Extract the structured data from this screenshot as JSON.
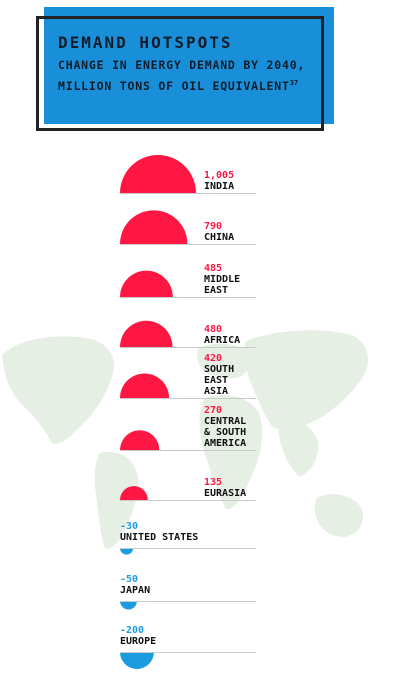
{
  "title": "DEMAND HOTSPOTS",
  "subtitle": "CHANGE IN ENERGY DEMAND BY 2040, MILLION TONS OF OIL EQUIVALENT",
  "footnote": "37",
  "colors": {
    "positive": "#ff1744",
    "negative": "#1a9be0",
    "title_box": "#1a8fd9",
    "map": "#e6efe4"
  },
  "chart_data": {
    "type": "bar",
    "encoding": "semicircle-area",
    "title": "DEMAND HOTSPOTS",
    "subtitle": "CHANGE IN ENERGY DEMAND BY 2040, MILLION TONS OF OIL EQUIVALENT",
    "unit": "million tons of oil equivalent",
    "categories": [
      "INDIA",
      "CHINA",
      "MIDDLE EAST",
      "AFRICA",
      "SOUTH EAST ASIA",
      "CENTRAL & SOUTH AMERICA",
      "EURASIA",
      "UNITED STATES",
      "JAPAN",
      "EUROPE"
    ],
    "values": [
      1005,
      790,
      485,
      480,
      420,
      270,
      135,
      -30,
      -50,
      -200
    ],
    "value_labels": [
      "1,005",
      "790",
      "485",
      "480",
      "420",
      "270",
      "135",
      "-30",
      "-50",
      "-200"
    ],
    "name_lines": [
      [
        "INDIA"
      ],
      [
        "CHINA"
      ],
      [
        "MIDDLE",
        "EAST"
      ],
      [
        "AFRICA"
      ],
      [
        "SOUTH",
        "EAST",
        "ASIA"
      ],
      [
        "CENTRAL",
        "& SOUTH",
        "AMERICA"
      ],
      [
        "EURASIA"
      ],
      [
        "UNITED STATES"
      ],
      [
        "JAPAN"
      ],
      [
        "EUROPE"
      ]
    ]
  }
}
